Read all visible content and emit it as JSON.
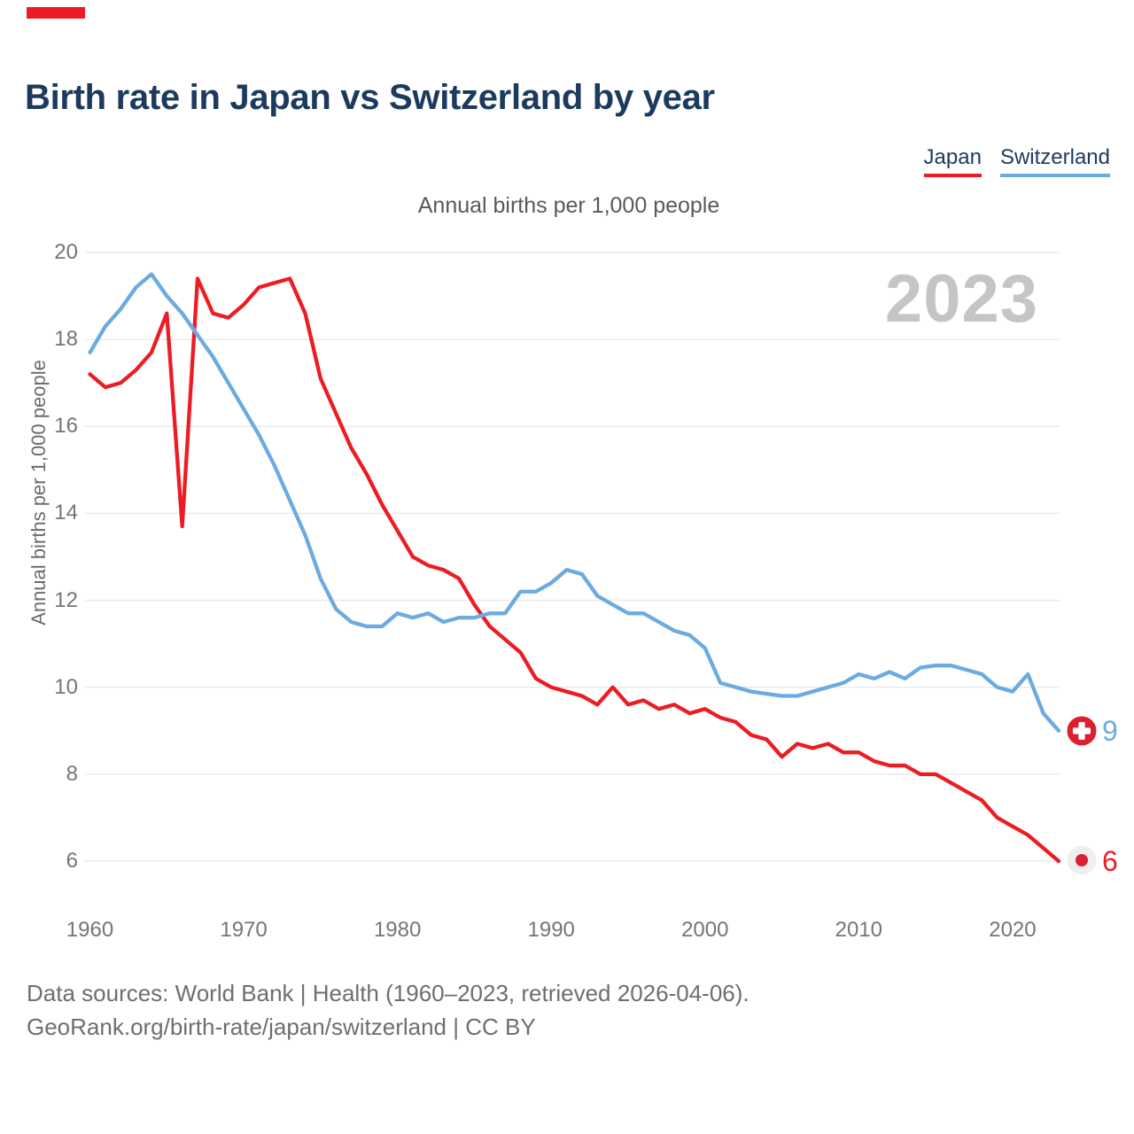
{
  "accent_color": "#ed1c24",
  "header": {
    "title": "Birth rate in Japan vs Switzerland by year"
  },
  "subtitle": "Annual births per 1,000 people",
  "watermark": "2023",
  "legend": [
    {
      "label": "Japan",
      "color": "#ed1c24"
    },
    {
      "label": "Switzerland",
      "color": "#6babe1"
    }
  ],
  "chart_data": {
    "type": "line",
    "title": "Birth rate in Japan vs Switzerland by year",
    "subtitle": "Annual births per 1,000 people",
    "xlabel": "",
    "ylabel": "Annual births per 1,000 people",
    "xlim": [
      1960,
      2023
    ],
    "ylim": [
      6,
      20
    ],
    "x_ticks": [
      1960,
      1970,
      1980,
      1990,
      2000,
      2010,
      2020
    ],
    "y_ticks": [
      20,
      18,
      16,
      14,
      12,
      10,
      8,
      6
    ],
    "grid": "horizontal",
    "legend_position": "top-right",
    "x": [
      1960,
      1961,
      1962,
      1963,
      1964,
      1965,
      1966,
      1967,
      1968,
      1969,
      1970,
      1971,
      1972,
      1973,
      1974,
      1975,
      1976,
      1977,
      1978,
      1979,
      1980,
      1981,
      1982,
      1983,
      1984,
      1985,
      1986,
      1987,
      1988,
      1989,
      1990,
      1991,
      1992,
      1993,
      1994,
      1995,
      1996,
      1997,
      1998,
      1999,
      2000,
      2001,
      2002,
      2003,
      2004,
      2005,
      2006,
      2007,
      2008,
      2009,
      2010,
      2011,
      2012,
      2013,
      2014,
      2015,
      2016,
      2017,
      2018,
      2019,
      2020,
      2021,
      2022,
      2023
    ],
    "series": [
      {
        "name": "Japan",
        "color": "#ed1c24",
        "end_label": "6",
        "end_flag": "japan-flag",
        "values": [
          17.2,
          16.9,
          17.0,
          17.3,
          17.7,
          18.6,
          13.7,
          19.4,
          18.6,
          18.5,
          18.8,
          19.2,
          19.3,
          19.4,
          18.6,
          17.1,
          16.3,
          15.5,
          14.9,
          14.2,
          13.6,
          13.0,
          12.8,
          12.7,
          12.5,
          11.9,
          11.4,
          11.1,
          10.8,
          10.2,
          10.0,
          9.9,
          9.8,
          9.6,
          10.0,
          9.6,
          9.7,
          9.5,
          9.6,
          9.4,
          9.5,
          9.3,
          9.2,
          8.9,
          8.8,
          8.4,
          8.7,
          8.6,
          8.7,
          8.5,
          8.5,
          8.3,
          8.2,
          8.2,
          8.0,
          8.0,
          7.8,
          7.6,
          7.4,
          7.0,
          6.8,
          6.6,
          6.3,
          6.0
        ]
      },
      {
        "name": "Switzerland",
        "color": "#6babe1",
        "end_label": "9",
        "end_flag": "switzerland-flag",
        "values": [
          17.7,
          18.3,
          18.7,
          19.2,
          19.5,
          19.0,
          18.6,
          18.1,
          17.6,
          17.0,
          16.4,
          15.8,
          15.1,
          14.3,
          13.5,
          12.5,
          11.8,
          11.5,
          11.4,
          11.4,
          11.7,
          11.6,
          11.7,
          11.5,
          11.6,
          11.6,
          11.7,
          11.7,
          12.2,
          12.2,
          12.4,
          12.7,
          12.6,
          12.1,
          11.9,
          11.7,
          11.7,
          11.5,
          11.3,
          11.2,
          10.9,
          10.1,
          10.0,
          9.9,
          9.85,
          9.8,
          9.8,
          9.9,
          10.0,
          10.1,
          10.3,
          10.2,
          10.35,
          10.2,
          10.45,
          10.5,
          10.5,
          10.4,
          10.3,
          10.0,
          9.9,
          10.3,
          9.4,
          9.0
        ]
      }
    ]
  },
  "footer": {
    "line1": "Data sources: World Bank | Health (1960–2023, retrieved 2026-04-06).",
    "line2": "GeoRank.org/birth-rate/japan/switzerland | CC BY"
  }
}
